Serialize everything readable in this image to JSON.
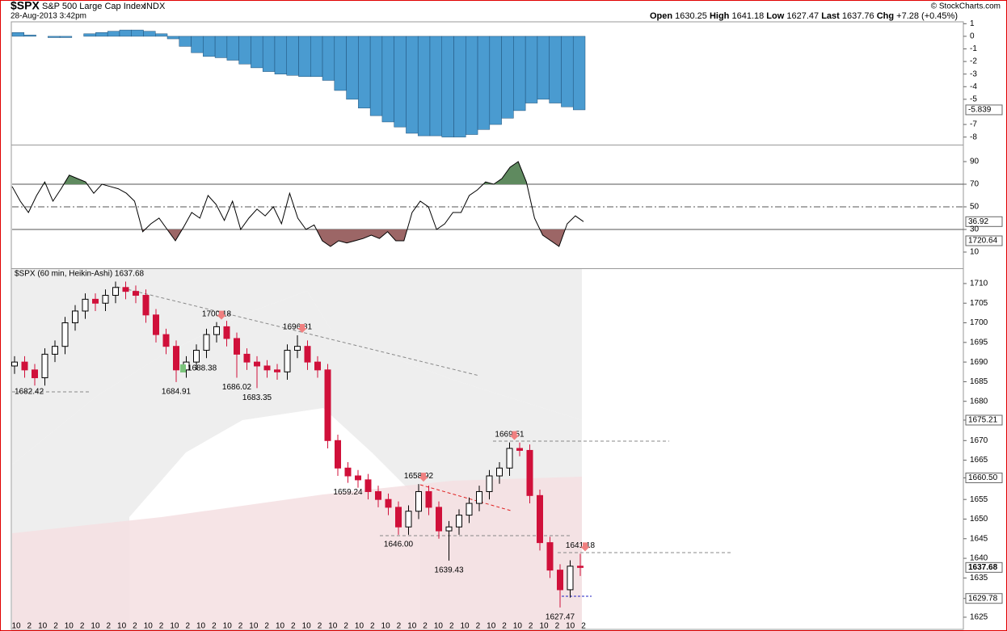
{
  "header": {
    "symbol": "$SPX",
    "name": "S&P 500 Large Cap Index",
    "exchange": "INDX",
    "date": "28-Aug-2013 3:42pm",
    "credit": "© StockCharts.com",
    "open_label": "Open",
    "open": 1630.25,
    "high_label": "High",
    "high": 1641.18,
    "low_label": "Low",
    "low": 1627.47,
    "last_label": "Last",
    "last": 1637.76,
    "chg_label": "Chg",
    "chg": "+7.28 (+0.45%)"
  },
  "chart_data": [
    {
      "type": "bar",
      "color": "#4a9bd0",
      "edge": "#1d4f78",
      "values": [
        0.3,
        0.1,
        0.0,
        -0.1,
        -0.1,
        0.0,
        0.2,
        0.3,
        0.4,
        0.5,
        0.5,
        0.4,
        0.2,
        -0.2,
        -0.8,
        -1.3,
        -1.6,
        -1.7,
        -1.9,
        -2.2,
        -2.5,
        -2.8,
        -3.0,
        -3.1,
        -3.2,
        -3.2,
        -3.5,
        -4.3,
        -5.0,
        -5.7,
        -6.3,
        -6.8,
        -7.2,
        -7.7,
        -7.9,
        -7.9,
        -8.0,
        -8.0,
        -7.8,
        -7.4,
        -7.0,
        -6.5,
        -5.9,
        -5.3,
        -5.0,
        -5.3,
        -5.6,
        -5.839
      ],
      "ylim": [
        -8.6,
        1.15
      ],
      "yticks": [
        1,
        0,
        -1,
        -2,
        -3,
        -4,
        -5,
        -7,
        -8
      ]
    },
    {
      "type": "line",
      "series": [
        {
          "color": "#000000",
          "values": [
            68,
            55,
            45,
            60,
            72,
            55,
            66,
            78,
            75,
            72,
            62,
            70,
            68,
            66,
            62,
            55,
            28,
            35,
            40,
            30,
            20,
            32,
            45,
            40,
            60,
            52,
            38,
            55,
            30,
            40,
            48,
            42,
            50,
            35,
            62,
            40,
            30,
            34,
            20,
            15,
            20,
            18,
            20,
            22,
            25,
            22,
            28,
            20,
            20,
            45,
            55,
            50,
            30,
            35,
            45,
            45,
            60,
            65,
            72,
            70,
            75,
            85,
            90,
            72,
            40,
            25,
            20,
            15,
            35,
            42,
            36.92
          ]
        }
      ],
      "ylim": [
        -4.3,
        104.3
      ],
      "yticks": [
        90,
        70,
        50,
        30,
        10
      ],
      "overbought": 70,
      "midline": 50,
      "oversold": 30,
      "overbought_color": "#5f8a5f",
      "oversold_color": "#9c6666",
      "tag_label": "1720.64"
    },
    {
      "type": "candlestick",
      "title": "$SPX (60 min, Heikin-Ashi) 1637.68",
      "up_color": "#ffffff",
      "down_color": "#d0103a",
      "open": [
        1689,
        1690,
        1688,
        1686,
        1692,
        1694,
        1700,
        1703,
        1706,
        1705,
        1707,
        1709,
        1708,
        1707,
        1702,
        1697,
        1694,
        1688,
        1690,
        1693,
        1697,
        1699,
        1696,
        1692,
        1690,
        1689,
        1688,
        1687.5,
        1693,
        1694,
        1690,
        1688,
        1670,
        1663,
        1661,
        1660,
        1657,
        1655,
        1653,
        1648,
        1652,
        1657,
        1653,
        1647,
        1648,
        1651,
        1654,
        1657,
        1661,
        1663,
        1668,
        1667.5,
        1656,
        1644,
        1637,
        1632,
        1638
      ],
      "high": [
        1691.5,
        1691.5,
        1689.5,
        1693.5,
        1695.5,
        1701.5,
        1704.5,
        1707.5,
        1707.5,
        1708.5,
        1710.5,
        1710.5,
        1709.5,
        1708.5,
        1703.5,
        1698.5,
        1695.5,
        1691.5,
        1694.5,
        1698.5,
        1700.18,
        1700.5,
        1697.5,
        1693.5,
        1691.5,
        1690.5,
        1689.5,
        1694.5,
        1696.81,
        1695.5,
        1691.5,
        1689.5,
        1671.5,
        1664.5,
        1662.5,
        1661.5,
        1658.5,
        1656.5,
        1654.5,
        1653.5,
        1658.92,
        1658.5,
        1654.5,
        1649.5,
        1652.5,
        1655.5,
        1658.5,
        1662.5,
        1664.5,
        1669.51,
        1669.5,
        1669,
        1657.5,
        1645.5,
        1638.5,
        1639.5,
        1641.18
      ],
      "low": [
        1687,
        1686,
        1684,
        1684,
        1690,
        1692,
        1698,
        1701,
        1703,
        1703,
        1705,
        1706,
        1705,
        1700,
        1695,
        1692,
        1684.91,
        1686,
        1688,
        1691,
        1695,
        1694,
        1686.02,
        1688,
        1683.35,
        1686,
        1685.5,
        1685.5,
        1691,
        1688,
        1686,
        1668,
        1661,
        1659.24,
        1658,
        1655,
        1653,
        1651,
        1646,
        1646,
        1650,
        1651,
        1645,
        1639.43,
        1646,
        1649,
        1652,
        1655,
        1659,
        1661,
        1666,
        1654,
        1642,
        1635,
        1627.47,
        1630,
        1635.5
      ],
      "close": [
        1690,
        1688,
        1686,
        1692,
        1694,
        1700,
        1703,
        1706,
        1705,
        1707,
        1709,
        1708,
        1707,
        1702,
        1697,
        1694,
        1688,
        1690,
        1693,
        1697,
        1699,
        1696,
        1692,
        1690,
        1689,
        1688,
        1687.5,
        1693,
        1694,
        1690,
        1688,
        1670,
        1663,
        1661,
        1660,
        1657,
        1655,
        1653,
        1648,
        1652,
        1657,
        1653,
        1647,
        1648,
        1651,
        1654,
        1657,
        1661,
        1663,
        1668,
        1667.5,
        1656,
        1644,
        1637,
        1632,
        1638,
        1637.68
      ],
      "high_labels": [
        null,
        null,
        null,
        null,
        null,
        null,
        null,
        null,
        null,
        null,
        null,
        null,
        null,
        null,
        null,
        null,
        null,
        null,
        null,
        null,
        "1700.18",
        null,
        null,
        null,
        null,
        null,
        null,
        null,
        "1696.81",
        null,
        null,
        null,
        null,
        null,
        null,
        null,
        null,
        null,
        null,
        null,
        "1658.92",
        null,
        null,
        null,
        null,
        null,
        null,
        null,
        null,
        "1669.51",
        null,
        null,
        null,
        null,
        null,
        null,
        "1641.18"
      ],
      "low_labels": [
        null,
        null,
        null,
        null,
        null,
        null,
        null,
        null,
        null,
        null,
        null,
        null,
        null,
        null,
        null,
        null,
        "1684.91",
        null,
        null,
        null,
        null,
        null,
        "1686.02",
        null,
        "1683.35",
        null,
        null,
        null,
        null,
        null,
        null,
        null,
        null,
        "1659.24",
        null,
        null,
        null,
        null,
        "1646.00",
        null,
        null,
        null,
        null,
        "1639.43",
        null,
        null,
        null,
        null,
        null,
        null,
        null,
        null,
        null,
        null,
        "1627.47",
        null,
        null
      ],
      "annotations": [
        {
          "text": "1682.42",
          "value": 1682.42
        },
        {
          "text": "1688.38",
          "value": 1688.38
        }
      ],
      "tags": [
        {
          "value": 1675.21,
          "label": "1675.21"
        },
        {
          "value": 1660.5,
          "label": "1660.50"
        },
        {
          "value": 1629.78,
          "label": "1629.78"
        }
      ],
      "ylim": [
        1621.9,
        1713.9
      ],
      "yticks": [
        1710,
        1705,
        1700,
        1695,
        1690,
        1685,
        1680,
        1670,
        1665,
        1655,
        1650,
        1645,
        1640,
        1635,
        1625
      ],
      "x_labels": [
        "10",
        "2",
        "10",
        "2",
        "10",
        "2",
        "10",
        "2",
        "10",
        "2",
        "10",
        "2",
        "10",
        "2",
        "10",
        "2",
        "10",
        "2",
        "10",
        "2",
        "10",
        "2",
        "10",
        "2",
        "10",
        "2",
        "10",
        "2",
        "10",
        "2",
        "10",
        "2",
        "10",
        "2",
        "10",
        "2",
        "10",
        "2",
        "10",
        "2",
        "10",
        "2",
        "10",
        "2"
      ]
    }
  ]
}
